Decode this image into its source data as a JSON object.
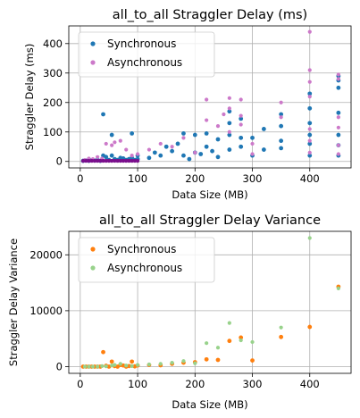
{
  "figure": {
    "background": "#ffffff",
    "grid_color": "#b0b0b0"
  },
  "chart_data": [
    {
      "type": "scatter",
      "title": "all_to_all Straggler Delay (ms)",
      "xlabel": "Data Size (MB)",
      "ylabel": "Straggler Delay (ms)",
      "xlim": [
        -20,
        472
      ],
      "ylim": [
        -22,
        460
      ],
      "xticks": [
        0,
        100,
        200,
        300,
        400
      ],
      "yticks": [
        0,
        100,
        200,
        300,
        400
      ],
      "grid": true,
      "legend_position": "upper left",
      "series": [
        {
          "name": "Synchronous",
          "color": "#1f77b4",
          "points": [
            [
              5,
              2
            ],
            [
              10,
              3
            ],
            [
              15,
              2
            ],
            [
              20,
              4
            ],
            [
              25,
              3
            ],
            [
              30,
              5
            ],
            [
              35,
              2
            ],
            [
              40,
              160
            ],
            [
              40,
              20
            ],
            [
              45,
              15
            ],
            [
              50,
              5
            ],
            [
              55,
              90
            ],
            [
              55,
              20
            ],
            [
              60,
              8
            ],
            [
              65,
              5
            ],
            [
              70,
              12
            ],
            [
              75,
              10
            ],
            [
              80,
              5
            ],
            [
              85,
              8
            ],
            [
              90,
              95
            ],
            [
              90,
              12
            ],
            [
              95,
              5
            ],
            [
              100,
              20
            ],
            [
              100,
              8
            ],
            [
              120,
              12
            ],
            [
              130,
              30
            ],
            [
              140,
              20
            ],
            [
              150,
              50
            ],
            [
              160,
              35
            ],
            [
              170,
              60
            ],
            [
              180,
              95
            ],
            [
              180,
              20
            ],
            [
              190,
              8
            ],
            [
              200,
              90
            ],
            [
              200,
              30
            ],
            [
              210,
              25
            ],
            [
              220,
              95
            ],
            [
              220,
              50
            ],
            [
              230,
              35
            ],
            [
              240,
              75
            ],
            [
              240,
              15
            ],
            [
              260,
              170
            ],
            [
              260,
              130
            ],
            [
              260,
              90
            ],
            [
              260,
              40
            ],
            [
              280,
              145
            ],
            [
              280,
              80
            ],
            [
              280,
              50
            ],
            [
              300,
              80
            ],
            [
              300,
              20
            ],
            [
              320,
              110
            ],
            [
              320,
              40
            ],
            [
              350,
              160
            ],
            [
              350,
              120
            ],
            [
              350,
              70
            ],
            [
              350,
              45
            ],
            [
              400,
              230
            ],
            [
              400,
              180
            ],
            [
              400,
              130
            ],
            [
              400,
              90
            ],
            [
              400,
              60
            ],
            [
              400,
              20
            ],
            [
              450,
              290
            ],
            [
              450,
              275
            ],
            [
              450,
              250
            ],
            [
              450,
              165
            ],
            [
              450,
              90
            ],
            [
              450,
              55
            ],
            [
              450,
              20
            ]
          ]
        },
        {
          "name": "Asynchronous",
          "color": "#cc79c9",
          "points": [
            [
              8,
              5
            ],
            [
              15,
              10
            ],
            [
              22,
              8
            ],
            [
              30,
              15
            ],
            [
              38,
              10
            ],
            [
              45,
              60
            ],
            [
              55,
              55
            ],
            [
              60,
              65
            ],
            [
              70,
              70
            ],
            [
              80,
              40
            ],
            [
              90,
              20
            ],
            [
              100,
              25
            ],
            [
              120,
              40
            ],
            [
              140,
              60
            ],
            [
              160,
              50
            ],
            [
              180,
              80
            ],
            [
              200,
              30
            ],
            [
              220,
              210
            ],
            [
              220,
              140
            ],
            [
              240,
              120
            ],
            [
              250,
              160
            ],
            [
              260,
              215
            ],
            [
              260,
              180
            ],
            [
              260,
              100
            ],
            [
              280,
              210
            ],
            [
              280,
              155
            ],
            [
              280,
              125
            ],
            [
              300,
              60
            ],
            [
              300,
              25
            ],
            [
              350,
              200
            ],
            [
              350,
              150
            ],
            [
              400,
              440
            ],
            [
              400,
              310
            ],
            [
              400,
              270
            ],
            [
              400,
              220
            ],
            [
              400,
              110
            ],
            [
              400,
              70
            ],
            [
              400,
              30
            ],
            [
              450,
              295
            ],
            [
              450,
              280
            ],
            [
              450,
              150
            ],
            [
              450,
              115
            ],
            [
              450,
              55
            ],
            [
              450,
              25
            ]
          ]
        }
      ],
      "baseline_band": {
        "series": "Asynchronous",
        "color": "#7a0f8c",
        "x_range": [
          5,
          100
        ],
        "values": [
          0,
          2,
          5
        ]
      }
    },
    {
      "type": "scatter",
      "title": "all_to_all Straggler Delay Variance",
      "xlabel": "Data Size (MB)",
      "ylabel": "Straggler Delay Variance",
      "xlim": [
        -20,
        472
      ],
      "ylim": [
        -1200,
        24200
      ],
      "xticks": [
        0,
        100,
        200,
        300,
        400
      ],
      "yticks": [
        0,
        10000,
        20000
      ],
      "grid": true,
      "legend_position": "upper left",
      "series": [
        {
          "name": "Synchronous",
          "color": "#ff7f0e",
          "points": [
            [
              5,
              0
            ],
            [
              10,
              0
            ],
            [
              15,
              0
            ],
            [
              20,
              0
            ],
            [
              25,
              0
            ],
            [
              30,
              0
            ],
            [
              35,
              0
            ],
            [
              40,
              2600
            ],
            [
              45,
              150
            ],
            [
              50,
              0
            ],
            [
              55,
              900
            ],
            [
              60,
              100
            ],
            [
              65,
              0
            ],
            [
              70,
              300
            ],
            [
              75,
              200
            ],
            [
              80,
              0
            ],
            [
              85,
              100
            ],
            [
              90,
              900
            ],
            [
              95,
              50
            ],
            [
              100,
              200
            ],
            [
              120,
              300
            ],
            [
              140,
              250
            ],
            [
              160,
              500
            ],
            [
              180,
              700
            ],
            [
              200,
              800
            ],
            [
              220,
              1300
            ],
            [
              240,
              1200
            ],
            [
              260,
              4600
            ],
            [
              280,
              5200
            ],
            [
              300,
              1100
            ],
            [
              350,
              5300
            ],
            [
              400,
              7100
            ],
            [
              450,
              14300
            ]
          ]
        },
        {
          "name": "Asynchronous",
          "color": "#98d28b",
          "points": [
            [
              8,
              0
            ],
            [
              15,
              0
            ],
            [
              22,
              0
            ],
            [
              30,
              0
            ],
            [
              38,
              100
            ],
            [
              45,
              50
            ],
            [
              55,
              200
            ],
            [
              60,
              300
            ],
            [
              70,
              500
            ],
            [
              80,
              200
            ],
            [
              90,
              100
            ],
            [
              100,
              300
            ],
            [
              120,
              400
            ],
            [
              140,
              500
            ],
            [
              160,
              700
            ],
            [
              180,
              1000
            ],
            [
              200,
              600
            ],
            [
              220,
              4200
            ],
            [
              240,
              3400
            ],
            [
              260,
              7800
            ],
            [
              280,
              4700
            ],
            [
              300,
              4400
            ],
            [
              350,
              7000
            ],
            [
              400,
              23000
            ],
            [
              450,
              14000
            ]
          ]
        }
      ]
    }
  ]
}
